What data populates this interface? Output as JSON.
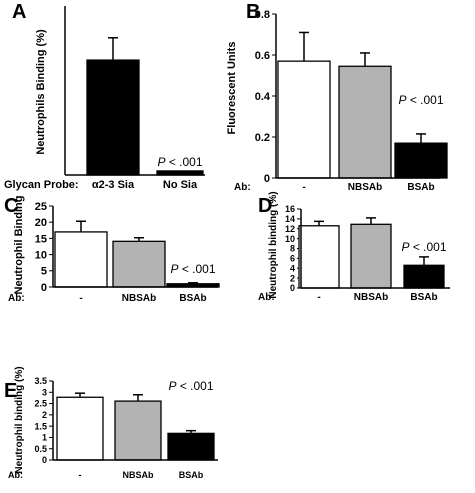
{
  "chart_data": [
    {
      "panel": "A",
      "type": "bar",
      "ylabel": "Neutrophils Binding (%)",
      "row_label": "Glycan Probe:",
      "categories": [
        "α2-3 Sia",
        "No Sia"
      ],
      "values": [
        17.0,
        0.6
      ],
      "errors": [
        3.3,
        0
      ],
      "fills": [
        "#000000",
        "#000000"
      ],
      "ylim": [
        0,
        25
      ],
      "yticks": [],
      "annotation": "P < .001",
      "annotation_bar": 1
    },
    {
      "panel": "B",
      "type": "bar",
      "ylabel": "Fluorescent Units",
      "row_label": "Ab:",
      "categories": [
        "-",
        "NBSAb",
        "BSAb"
      ],
      "values": [
        0.57,
        0.545,
        0.17
      ],
      "errors": [
        0.14,
        0.065,
        0.045
      ],
      "fills": [
        "#ffffff",
        "#b3b3b3",
        "#000000"
      ],
      "ylim": [
        0,
        0.8
      ],
      "yticks": [
        "0",
        "0.2",
        "0.4",
        "0.6",
        "0.8"
      ],
      "annotation": "P < .001",
      "annotation_bar": 2
    },
    {
      "panel": "C",
      "type": "bar",
      "ylabel": "Neutrophil Binding",
      "row_label": "Ab:",
      "categories": [
        "-",
        "NBSAb",
        "BSAb"
      ],
      "values": [
        17.0,
        14.1,
        1.0
      ],
      "errors": [
        3.3,
        1.1,
        0.3
      ],
      "fills": [
        "#ffffff",
        "#b3b3b3",
        "#000000"
      ],
      "ylim": [
        0,
        25
      ],
      "yticks": [
        "0",
        "5",
        "10",
        "15",
        "20",
        "25"
      ],
      "annotation": "P < .001",
      "annotation_bar": 2
    },
    {
      "panel": "D",
      "type": "bar",
      "ylabel": "Neutrophil binding (%)",
      "row_label": "Ab:",
      "categories": [
        "-",
        "NBSAb",
        "BSAb"
      ],
      "values": [
        12.6,
        12.9,
        4.6
      ],
      "errors": [
        0.9,
        1.3,
        1.7
      ],
      "fills": [
        "#ffffff",
        "#b3b3b3",
        "#000000"
      ],
      "ylim": [
        0,
        16
      ],
      "yticks": [
        "0",
        "2",
        "4",
        "6",
        "8",
        "10",
        "12",
        "14",
        "16"
      ],
      "annotation": "P < .001",
      "annotation_bar": 2
    },
    {
      "panel": "E",
      "type": "bar",
      "ylabel": "Neutrophil binding (%)",
      "row_label": "Ab:",
      "categories": [
        "-",
        "NBSAb",
        "BSAb"
      ],
      "values": [
        2.78,
        2.61,
        1.18
      ],
      "errors": [
        0.18,
        0.28,
        0.12
      ],
      "fills": [
        "#ffffff",
        "#b3b3b3",
        "#000000"
      ],
      "ylim": [
        0,
        3.5
      ],
      "yticks": [
        "0",
        "0.5",
        "1",
        "1.5",
        "2",
        "2.5",
        "3",
        "3.5"
      ],
      "annotation": "P < .001",
      "annotation_bar": 2
    }
  ]
}
